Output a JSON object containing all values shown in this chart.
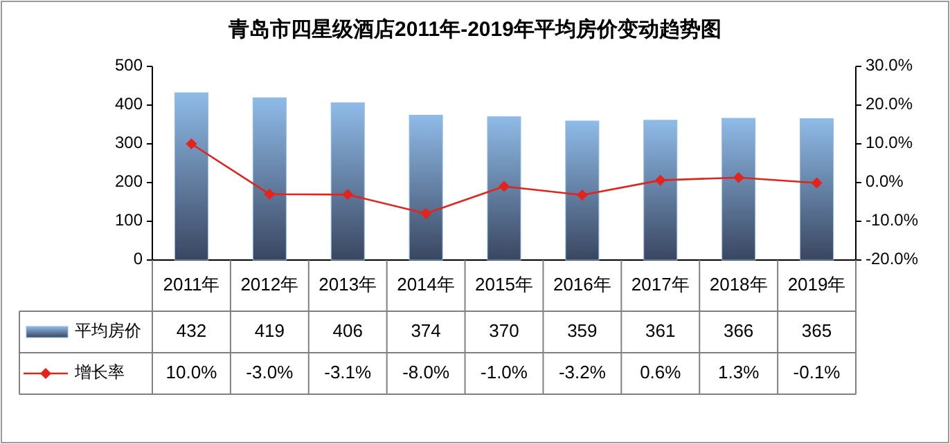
{
  "chart_data": {
    "type": "bar",
    "title": "青岛市四星级酒店2011年-2019年平均房价变动趋势图",
    "categories": [
      "2011年",
      "2012年",
      "2013年",
      "2014年",
      "2015年",
      "2016年",
      "2017年",
      "2018年",
      "2019年"
    ],
    "series": [
      {
        "name": "平均房价",
        "color": "#8fbbe8",
        "values": [
          432,
          419,
          406,
          374,
          370,
          359,
          361,
          366,
          365
        ],
        "value_labels": [
          "432",
          "419",
          "406",
          "374",
          "370",
          "359",
          "361",
          "366",
          "365"
        ]
      },
      {
        "name": "增长率",
        "type": "line",
        "axis": "y2",
        "color": "#e3231c",
        "marker": "diamond",
        "values": [
          10.0,
          -3.0,
          -3.1,
          -8.0,
          -1.0,
          -3.2,
          0.6,
          1.3,
          -0.1
        ],
        "value_labels": [
          "10.0%",
          "-3.0%",
          "-3.1%",
          "-8.0%",
          "-1.0%",
          "-3.2%",
          "0.6%",
          "1.3%",
          "-0.1%"
        ]
      }
    ],
    "ylim": [
      0,
      500
    ],
    "yticks": [
      0,
      100,
      200,
      300,
      400,
      500
    ],
    "y2lim": [
      -20,
      30
    ],
    "y2ticks": [
      {
        "value": -20,
        "label": "-20.0%"
      },
      {
        "value": -10,
        "label": "-10.0%"
      },
      {
        "value": 0,
        "label": "0.0%"
      },
      {
        "value": 10,
        "label": "10.0%"
      },
      {
        "value": 20,
        "label": "20.0%"
      },
      {
        "value": 30,
        "label": "30.0%"
      }
    ],
    "legend": "bottom left"
  }
}
